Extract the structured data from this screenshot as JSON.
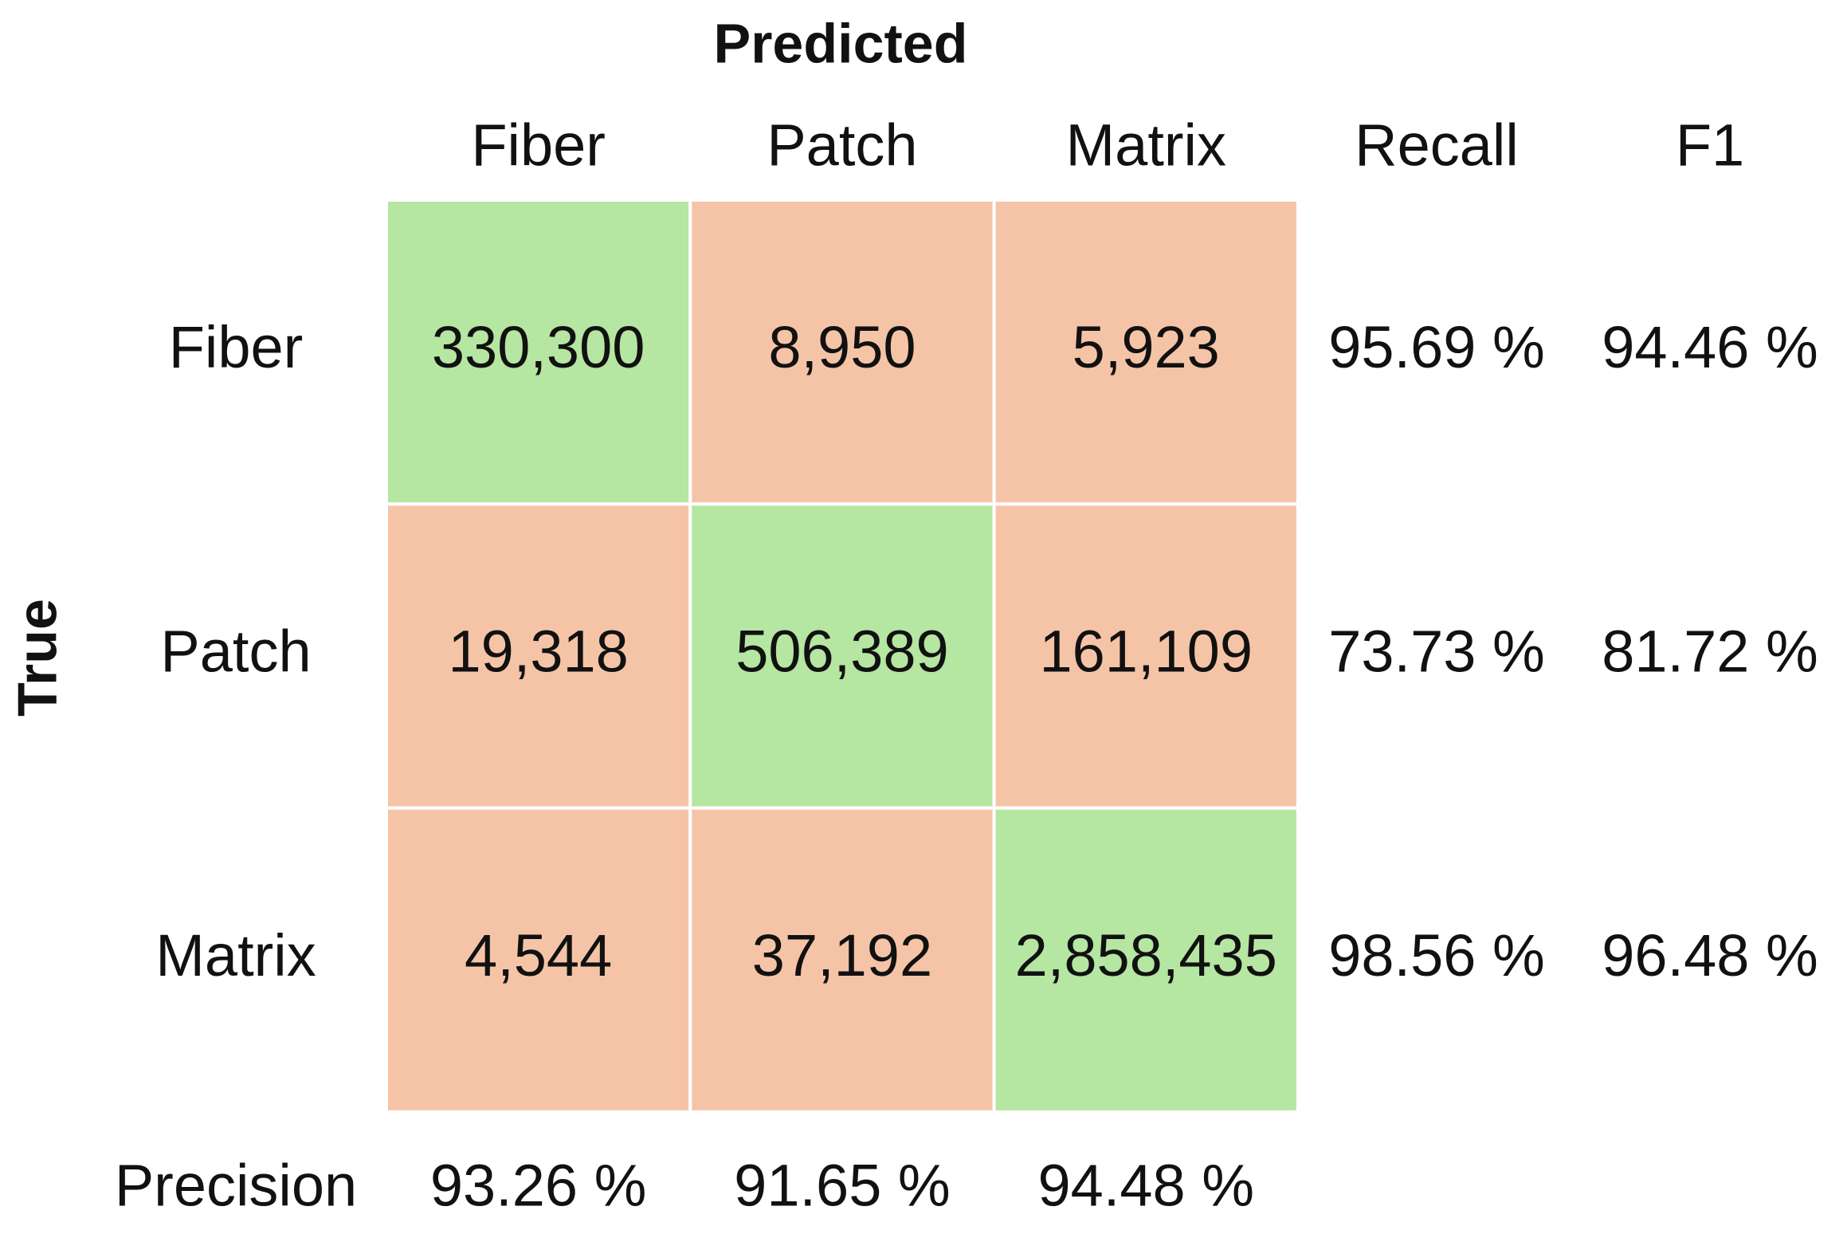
{
  "title": "Predicted",
  "row_axis_label": "True",
  "column_headers": [
    "Fiber",
    "Patch",
    "Matrix",
    "Recall",
    "F1"
  ],
  "rows": [
    {
      "label": "Fiber",
      "cells": [
        "330,300",
        "8,950",
        "5,923"
      ],
      "recall": "95.69 %",
      "f1": "94.46 %"
    },
    {
      "label": "Patch",
      "cells": [
        "19,318",
        "506,389",
        "161,109"
      ],
      "recall": "73.73 %",
      "f1": "81.72 %"
    },
    {
      "label": "Matrix",
      "cells": [
        "4,544",
        "37,192",
        "2,858,435"
      ],
      "recall": "98.56 %",
      "f1": "96.48 %"
    }
  ],
  "precision": {
    "label": "Precision",
    "values": [
      "93.26 %",
      "91.65 %",
      "94.48 %"
    ]
  }
}
